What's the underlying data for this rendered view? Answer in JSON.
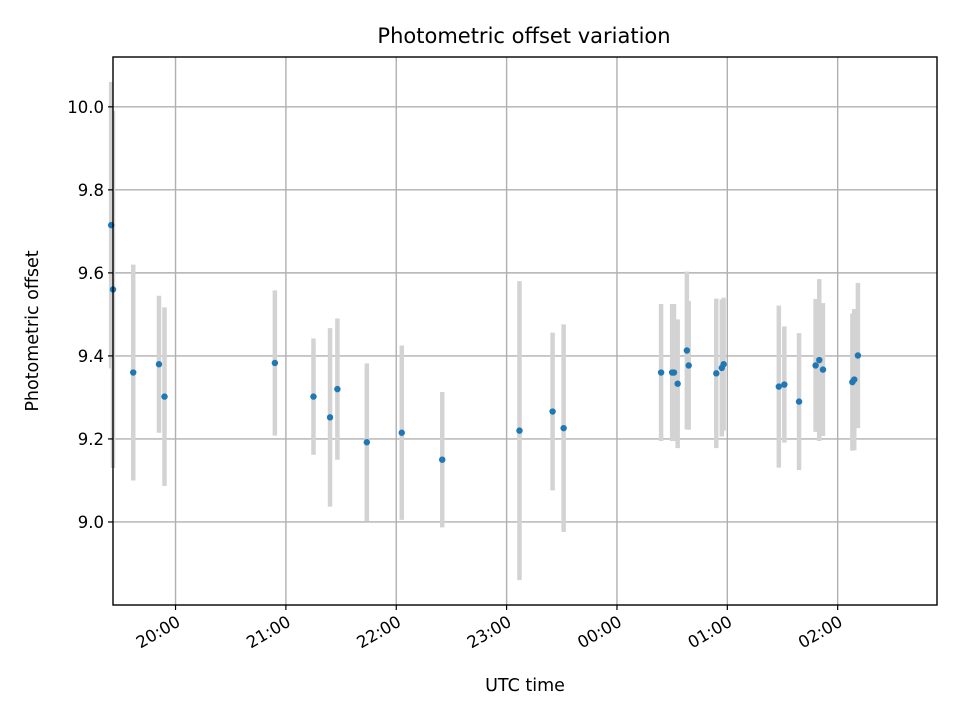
{
  "chart_data": {
    "type": "scatter",
    "title": "Photometric offset variation",
    "xlabel": "UTC time",
    "ylabel": "Photometric offset",
    "x_ticks": [
      "20:00",
      "21:00",
      "22:00",
      "23:00",
      "00:00",
      "01:00",
      "02:00"
    ],
    "y_ticks": [
      "9.0",
      "9.2",
      "9.4",
      "9.6",
      "9.8",
      "10.0"
    ],
    "xlim": [
      "19:26",
      "02:54"
    ],
    "ylim": [
      8.8,
      10.12
    ],
    "grid": true,
    "point_color": "#1f77b4",
    "errorbar_color": "#d3d3d3",
    "series": [
      {
        "points": [
          {
            "time": "19:25",
            "value": 9.715,
            "err": 0.345
          },
          {
            "time": "19:26",
            "value": 9.56,
            "err": 0.43
          },
          {
            "time": "19:37",
            "value": 9.36,
            "err": 0.26
          },
          {
            "time": "19:51",
            "value": 9.38,
            "err": 0.165
          },
          {
            "time": "19:54",
            "value": 9.302,
            "err": 0.215
          },
          {
            "time": "20:54",
            "value": 9.383,
            "err": 0.175
          },
          {
            "time": "21:15",
            "value": 9.302,
            "err": 0.14
          },
          {
            "time": "21:24",
            "value": 9.252,
            "err": 0.215
          },
          {
            "time": "21:28",
            "value": 9.32,
            "err": 0.17
          },
          {
            "time": "21:44",
            "value": 9.192,
            "err": 0.19
          },
          {
            "time": "22:03",
            "value": 9.215,
            "err": 0.21
          },
          {
            "time": "22:25",
            "value": 9.15,
            "err": 0.163
          },
          {
            "time": "23:07",
            "value": 9.22,
            "err": 0.36
          },
          {
            "time": "23:25",
            "value": 9.266,
            "err": 0.19
          },
          {
            "time": "23:31",
            "value": 9.226,
            "err": 0.25
          },
          {
            "time": "00:24",
            "value": 9.36,
            "err": 0.165
          },
          {
            "time": "00:30",
            "value": 9.36,
            "err": 0.165
          },
          {
            "time": "00:31",
            "value": 9.36,
            "err": 0.165
          },
          {
            "time": "00:33",
            "value": 9.333,
            "err": 0.155
          },
          {
            "time": "00:38",
            "value": 9.413,
            "err": 0.19
          },
          {
            "time": "00:39",
            "value": 9.377,
            "err": 0.155
          },
          {
            "time": "00:54",
            "value": 9.358,
            "err": 0.18
          },
          {
            "time": "00:57",
            "value": 9.371,
            "err": 0.165
          },
          {
            "time": "00:58",
            "value": 9.38,
            "err": 0.16
          },
          {
            "time": "01:28",
            "value": 9.326,
            "err": 0.195
          },
          {
            "time": "01:31",
            "value": 9.331,
            "err": 0.14
          },
          {
            "time": "01:39",
            "value": 9.29,
            "err": 0.165
          },
          {
            "time": "01:48",
            "value": 9.377,
            "err": 0.16
          },
          {
            "time": "01:50",
            "value": 9.39,
            "err": 0.195
          },
          {
            "time": "01:52",
            "value": 9.367,
            "err": 0.16
          },
          {
            "time": "02:08",
            "value": 9.337,
            "err": 0.165
          },
          {
            "time": "02:09",
            "value": 9.343,
            "err": 0.17
          },
          {
            "time": "02:11",
            "value": 9.401,
            "err": 0.175
          }
        ]
      }
    ]
  }
}
